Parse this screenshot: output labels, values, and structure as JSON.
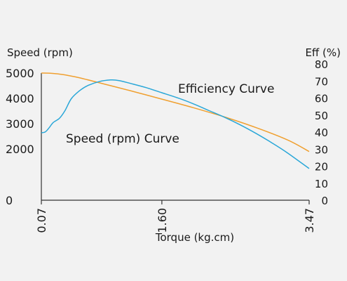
{
  "chart_data": {
    "type": "line",
    "xlabel": "Torque (kg.cm)",
    "ylabel_left": "Speed (rpm)",
    "ylabel_right": "Eff (%)",
    "x_ticks": [
      "0.07",
      "1.60",
      "3.47"
    ],
    "x_tick_values": [
      0.07,
      1.6,
      3.47
    ],
    "xlim": [
      0.07,
      3.47
    ],
    "y_left_ticks": [
      "0",
      "2000",
      "3000",
      "4000",
      "5000"
    ],
    "y_left_tick_values": [
      0,
      2000,
      3000,
      4000,
      5000
    ],
    "y_right_ticks": [
      "0",
      "10",
      "20",
      "30",
      "40",
      "50",
      "60",
      "70",
      "80"
    ],
    "y_right_tick_values": [
      0,
      10,
      20,
      30,
      40,
      50,
      60,
      70,
      80
    ],
    "series": [
      {
        "name": "Speed (rpm) Curve",
        "axis": "left",
        "color": "#f0a030",
        "points": [
          [
            0.07,
            5000
          ],
          [
            0.2,
            4990
          ],
          [
            0.35,
            4940
          ],
          [
            0.5,
            4850
          ],
          [
            0.65,
            4740
          ],
          [
            0.8,
            4620
          ],
          [
            1.0,
            4460
          ],
          [
            1.3,
            4220
          ],
          [
            1.6,
            3970
          ],
          [
            2.0,
            3630
          ],
          [
            2.4,
            3260
          ],
          [
            2.8,
            2840
          ],
          [
            3.2,
            2350
          ],
          [
            3.47,
            1900
          ]
        ]
      },
      {
        "name": "Efficiency Curve",
        "axis": "right",
        "color": "#2aa7d8",
        "points": [
          [
            0.07,
            40
          ],
          [
            0.12,
            40.5
          ],
          [
            0.17,
            43
          ],
          [
            0.22,
            46
          ],
          [
            0.3,
            48.5
          ],
          [
            0.37,
            53
          ],
          [
            0.45,
            60
          ],
          [
            0.55,
            64.5
          ],
          [
            0.65,
            67.5
          ],
          [
            0.8,
            70
          ],
          [
            0.95,
            71
          ],
          [
            1.05,
            70.7
          ],
          [
            1.2,
            69
          ],
          [
            1.4,
            66.5
          ],
          [
            1.6,
            63.5
          ],
          [
            1.8,
            60.5
          ],
          [
            2.0,
            57
          ],
          [
            2.2,
            53
          ],
          [
            2.4,
            49
          ],
          [
            2.6,
            44.5
          ],
          [
            2.8,
            39.5
          ],
          [
            3.0,
            34
          ],
          [
            3.2,
            28
          ],
          [
            3.47,
            19
          ]
        ]
      }
    ],
    "grid": false
  }
}
